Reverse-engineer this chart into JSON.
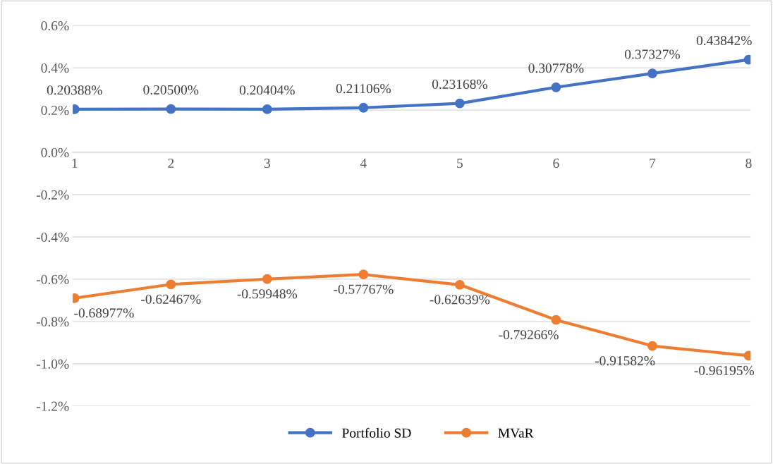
{
  "chart_data": {
    "type": "line",
    "categories": [
      "1",
      "2",
      "3",
      "4",
      "5",
      "6",
      "7",
      "8"
    ],
    "series": [
      {
        "name": "Portfolio SD",
        "color": "#4472c4",
        "values": [
          0.20388,
          0.205,
          0.20404,
          0.21106,
          0.23168,
          0.30778,
          0.37327,
          0.43842
        ],
        "value_labels": [
          "0.20388%",
          "0.20500%",
          "0.20404%",
          "0.21106%",
          "0.23168%",
          "0.30778%",
          "0.37327%",
          "0.43842%"
        ]
      },
      {
        "name": "MVaR",
        "color": "#ed7d31",
        "values": [
          -0.68977,
          -0.62467,
          -0.59948,
          -0.57767,
          -0.62639,
          -0.79266,
          -0.91582,
          -0.96195
        ],
        "value_labels": [
          "-0.68977%",
          "-0.62467%",
          "-0.59948%",
          "-0.57767%",
          "-0.62639%",
          "-0.79266%",
          "-0.91582%",
          "-0.96195%"
        ]
      }
    ],
    "ylim": [
      -1.2,
      0.6
    ],
    "yticks": [
      {
        "value": -1.2,
        "label": "-1.2%"
      },
      {
        "value": -1.0,
        "label": "-1.0%"
      },
      {
        "value": -0.8,
        "label": "-0.8%"
      },
      {
        "value": -0.6,
        "label": "-0.6%"
      },
      {
        "value": -0.4,
        "label": "-0.4%"
      },
      {
        "value": -0.2,
        "label": "-0.2%"
      },
      {
        "value": 0.0,
        "label": "0.0%"
      },
      {
        "value": 0.2,
        "label": "0.2%"
      },
      {
        "value": 0.4,
        "label": "0.4%"
      },
      {
        "value": 0.6,
        "label": "0.6%"
      }
    ],
    "grid": "y",
    "legend": "bottom",
    "marker": "circle",
    "line_style": "solid"
  }
}
